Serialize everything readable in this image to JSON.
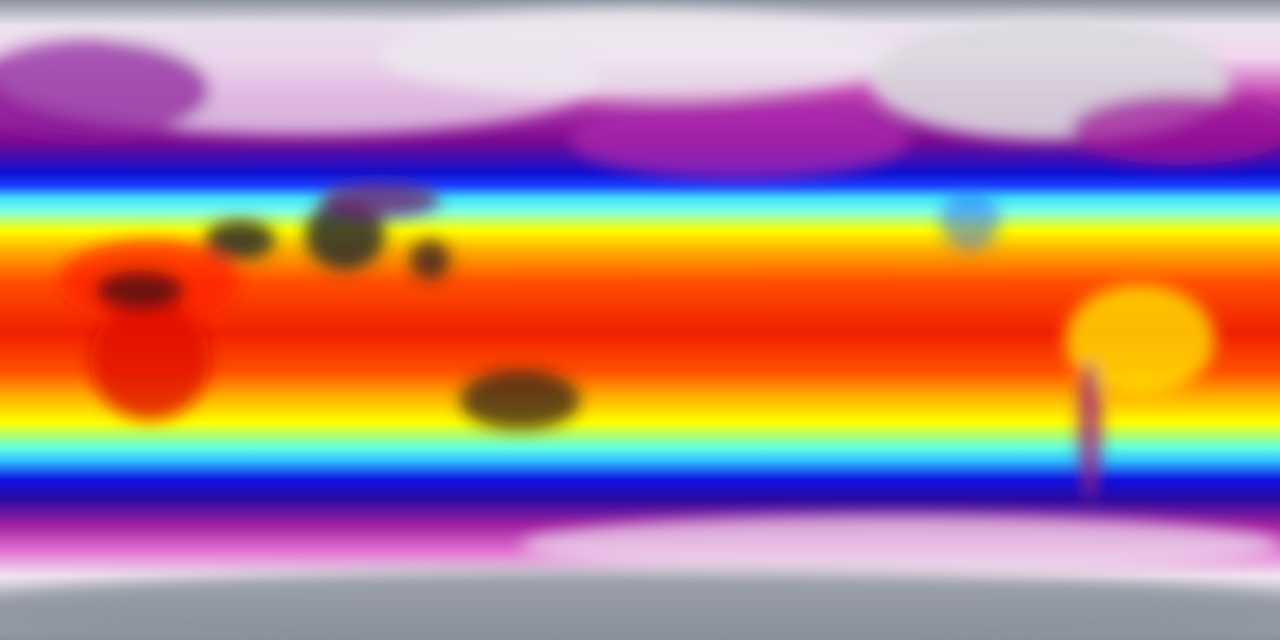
{
  "map": {
    "type": "global temperature field, equirectangular projection",
    "colormap": [
      "#8d93a0",
      "#e9e4ec",
      "#f4d6f0",
      "#c040b0",
      "#7a0a90",
      "#1010d0",
      "#1a40ff",
      "#40e0ff",
      "#80ffe0",
      "#ffff00",
      "#ffb000",
      "#ff5000",
      "#f02000",
      "#ff5000",
      "#ffb000",
      "#ffff00",
      "#60ffe0",
      "#30c0ff",
      "#1010e0",
      "#2a0aa0",
      "#a020a0",
      "#e070d0",
      "#f2e4f0",
      "#c8c8d0",
      "#8a909c"
    ],
    "land_colors": {
      "hot_desert": "#2a2a2a",
      "ice": "#d8d8dc",
      "cold_land": "#a0108a"
    }
  }
}
